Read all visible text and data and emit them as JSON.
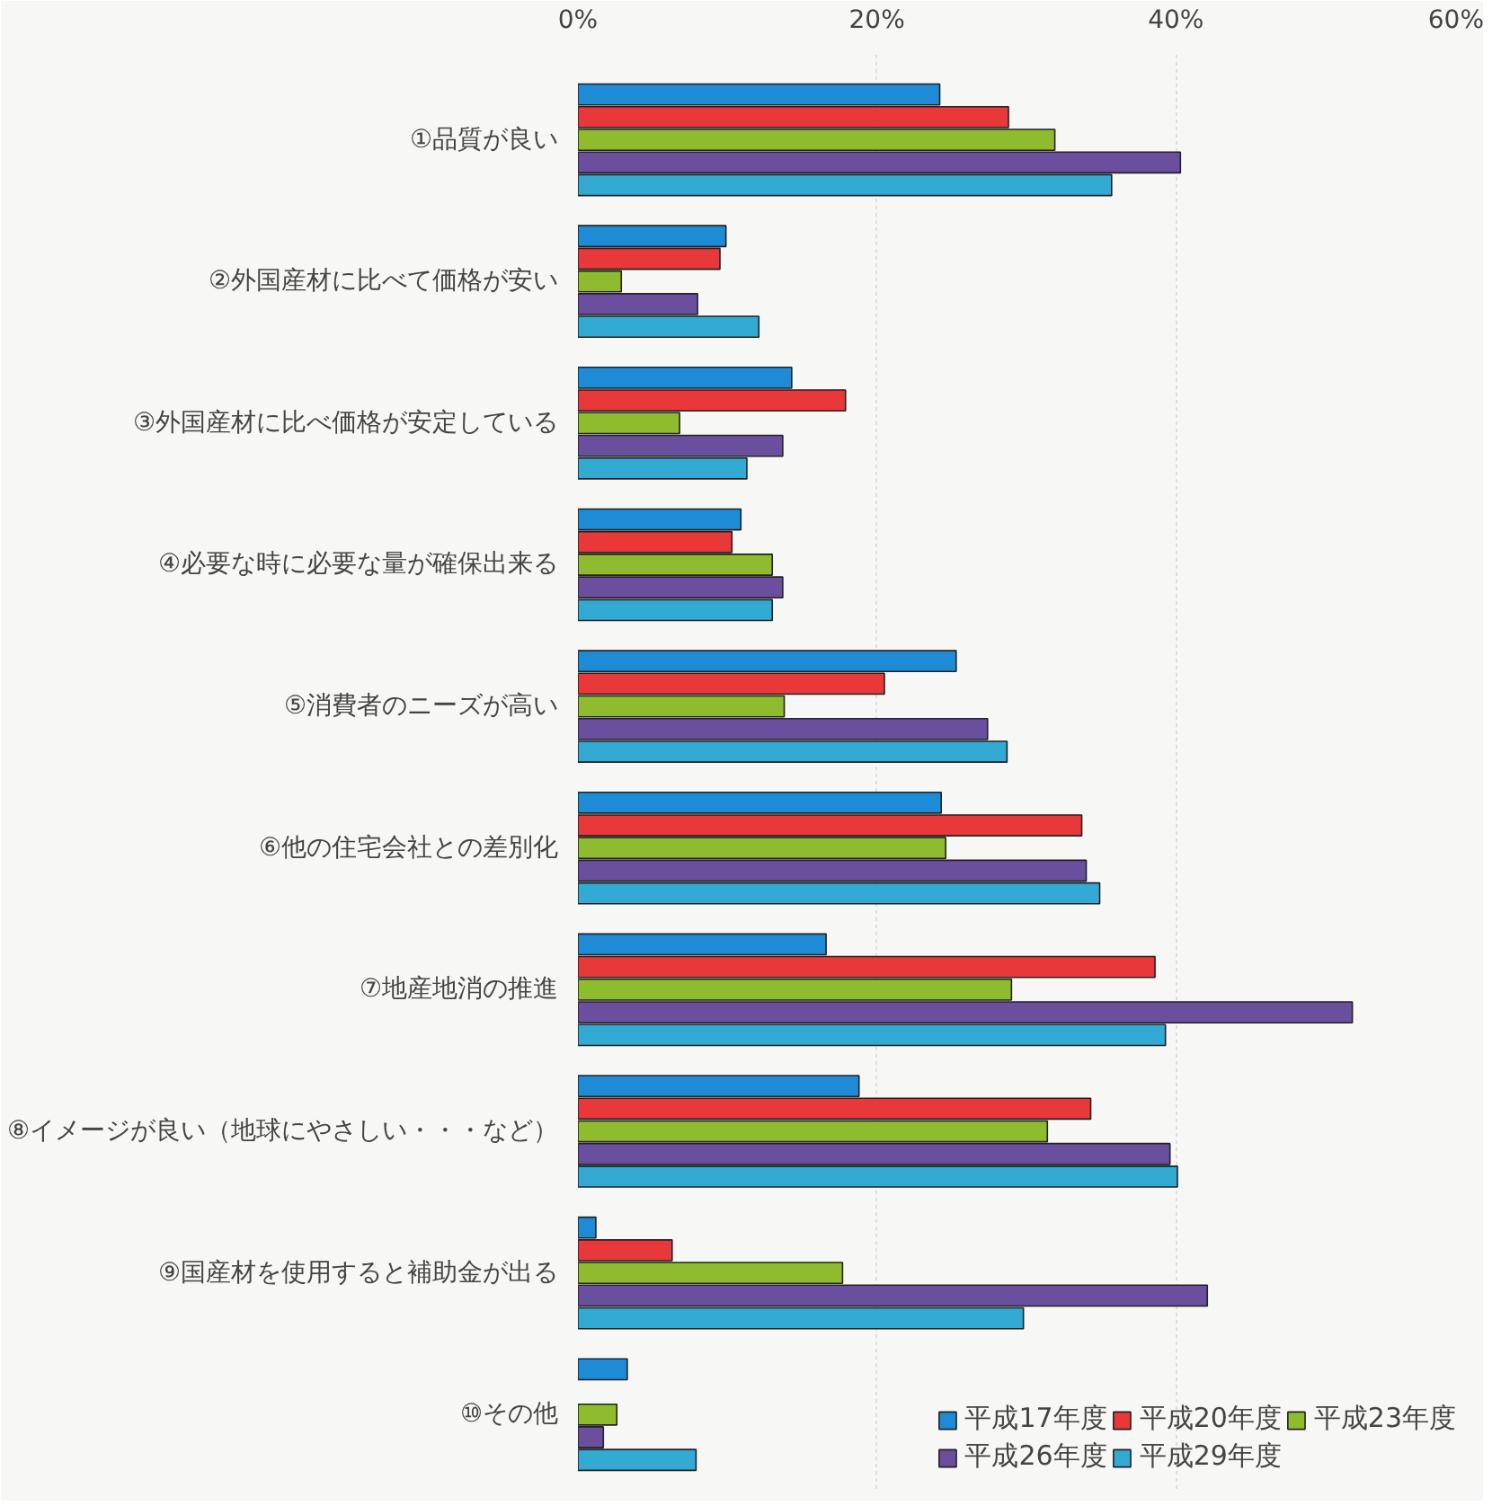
{
  "chart_data": {
    "type": "bar",
    "orientation": "horizontal",
    "categories": [
      "①品質が良い",
      "②外国産材に比べて価格が安い",
      "③外国産材に比べ価格が安定している",
      "④必要な時に必要な量が確保出来る",
      "⑤消費者のニーズが高い",
      "⑥他の住宅会社との差別化",
      "⑦地産地消の推進",
      "⑧イメージが良い（地球にやさしい・・・など）",
      "⑨国産材を使用すると補助金が出る",
      "⑩その他"
    ],
    "series": [
      {
        "name": "平成17年度",
        "color": "#1e8bd6",
        "values": [
          24.2,
          9.9,
          14.3,
          10.9,
          25.3,
          24.3,
          16.6,
          18.8,
          1.2,
          3.3
        ]
      },
      {
        "name": "平成20年度",
        "color": "#e8383a",
        "values": [
          28.8,
          9.5,
          17.9,
          10.3,
          20.5,
          33.7,
          38.6,
          34.3,
          6.3,
          null
        ]
      },
      {
        "name": "平成23年度",
        "color": "#8fbc2f",
        "values": [
          31.9,
          2.9,
          6.8,
          13.0,
          13.8,
          24.6,
          29.0,
          31.4,
          17.7,
          2.6
        ]
      },
      {
        "name": "平成26年度",
        "color": "#6a4f9e",
        "values": [
          40.3,
          8.0,
          13.7,
          13.7,
          27.4,
          34.0,
          51.8,
          39.6,
          42.1,
          1.7
        ]
      },
      {
        "name": "平成29年度",
        "color": "#33aad4",
        "values": [
          35.7,
          12.1,
          11.3,
          13.0,
          28.7,
          34.9,
          39.3,
          40.1,
          29.8,
          7.9
        ]
      }
    ],
    "xlim": [
      0,
      60
    ],
    "xticks": [
      {
        "value": 0,
        "label": "0%"
      },
      {
        "value": 20,
        "label": "20%"
      },
      {
        "value": 40,
        "label": "40%"
      },
      {
        "value": 60,
        "label": "60%"
      }
    ],
    "grid": "x",
    "legend": "bottom right"
  }
}
